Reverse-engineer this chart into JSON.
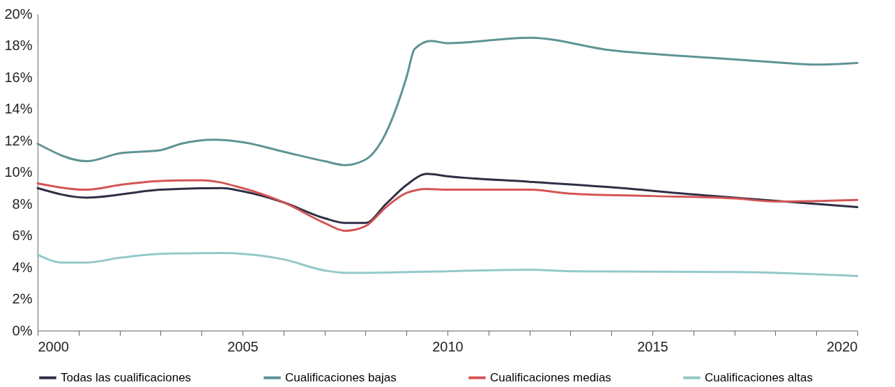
{
  "chart_data": {
    "type": "line",
    "xlim": [
      2000,
      2020
    ],
    "xticks": [
      2000,
      {
        "value": 2001,
        "label": null
      },
      {
        "value": 2002,
        "label": null
      },
      {
        "value": 2003,
        "label": null
      },
      {
        "value": 2004,
        "label": null
      },
      2005,
      {
        "value": 2006,
        "label": null
      },
      {
        "value": 2007,
        "label": null
      },
      {
        "value": 2008,
        "label": null
      },
      {
        "value": 2009,
        "label": null
      },
      2010,
      {
        "value": 2011,
        "label": null
      },
      {
        "value": 2012,
        "label": null
      },
      {
        "value": 2013,
        "label": null
      },
      {
        "value": 2014,
        "label": null
      },
      2015,
      {
        "value": 2016,
        "label": null
      },
      {
        "value": 2017,
        "label": null
      },
      {
        "value": 2018,
        "label": null
      },
      {
        "value": 2019,
        "label": null
      },
      2020
    ],
    "ylim": [
      0,
      20
    ],
    "yticks": [
      {
        "value": 0,
        "label": "0%"
      },
      {
        "value": 2,
        "label": "2%"
      },
      {
        "value": 4,
        "label": "4%"
      },
      {
        "value": 6,
        "label": "6%"
      },
      {
        "value": 8,
        "label": "8%"
      },
      {
        "value": 10,
        "label": "10%"
      },
      {
        "value": 12,
        "label": "12%"
      },
      {
        "value": 14,
        "label": "14%"
      },
      {
        "value": 16,
        "label": "16%"
      },
      {
        "value": 18,
        "label": "18%"
      },
      {
        "value": 20,
        "label": "20%"
      }
    ],
    "legend": "bottom",
    "series": [
      {
        "name": "Todas las cualificaciones",
        "color": "#2e2e45",
        "x": [
          2000,
          2001.2,
          2003,
          2004.5,
          2005,
          2006,
          2007,
          2007.5,
          2008,
          2008.5,
          2009,
          2009.5,
          2010,
          2012,
          2014,
          2016,
          2018,
          2019,
          2020
        ],
        "values": [
          9.0,
          8.4,
          8.9,
          9.0,
          8.8,
          8.1,
          7.1,
          6.8,
          6.8,
          8.0,
          9.2,
          9.9,
          9.75,
          9.4,
          9.05,
          8.6,
          8.2,
          8.0,
          7.8
        ]
      },
      {
        "name": "Cualificaciones bajas",
        "color": "#5e9393",
        "x": [
          2000,
          2001.2,
          2002,
          2003,
          2003.5,
          2004.3,
          2005,
          2006,
          2007,
          2007.5,
          2008,
          2008.4,
          2009,
          2009.2,
          2009.6,
          2010,
          2012,
          2014,
          2016,
          2018,
          2019,
          2020
        ],
        "values": [
          11.8,
          10.7,
          11.2,
          11.4,
          11.8,
          12.05,
          11.9,
          11.3,
          10.7,
          10.45,
          10.8,
          12.0,
          16.0,
          17.8,
          18.3,
          18.15,
          18.5,
          17.7,
          17.3,
          16.95,
          16.8,
          16.9
        ]
      },
      {
        "name": "Cualificaciones medias",
        "color": "#d45454",
        "x": [
          2000,
          2001.2,
          2002,
          2003,
          2004,
          2005,
          2006,
          2007,
          2007.5,
          2008,
          2008.5,
          2009,
          2009.5,
          2010,
          2012,
          2013,
          2015,
          2017,
          2018,
          2020
        ],
        "values": [
          9.3,
          8.9,
          9.2,
          9.45,
          9.5,
          9.0,
          8.1,
          6.8,
          6.3,
          6.6,
          7.8,
          8.7,
          8.95,
          8.9,
          8.9,
          8.65,
          8.5,
          8.35,
          8.15,
          8.25
        ]
      },
      {
        "name": "Cualificaciones altas",
        "color": "#94c8c8",
        "x": [
          2000,
          2000.6,
          2001.2,
          2002,
          2003,
          2004.5,
          2005,
          2006,
          2007,
          2007.5,
          2008,
          2010,
          2012,
          2013,
          2017,
          2020
        ],
        "values": [
          4.8,
          4.3,
          4.3,
          4.6,
          4.85,
          4.9,
          4.85,
          4.5,
          3.8,
          3.65,
          3.65,
          3.75,
          3.85,
          3.75,
          3.7,
          3.45
        ]
      }
    ]
  }
}
